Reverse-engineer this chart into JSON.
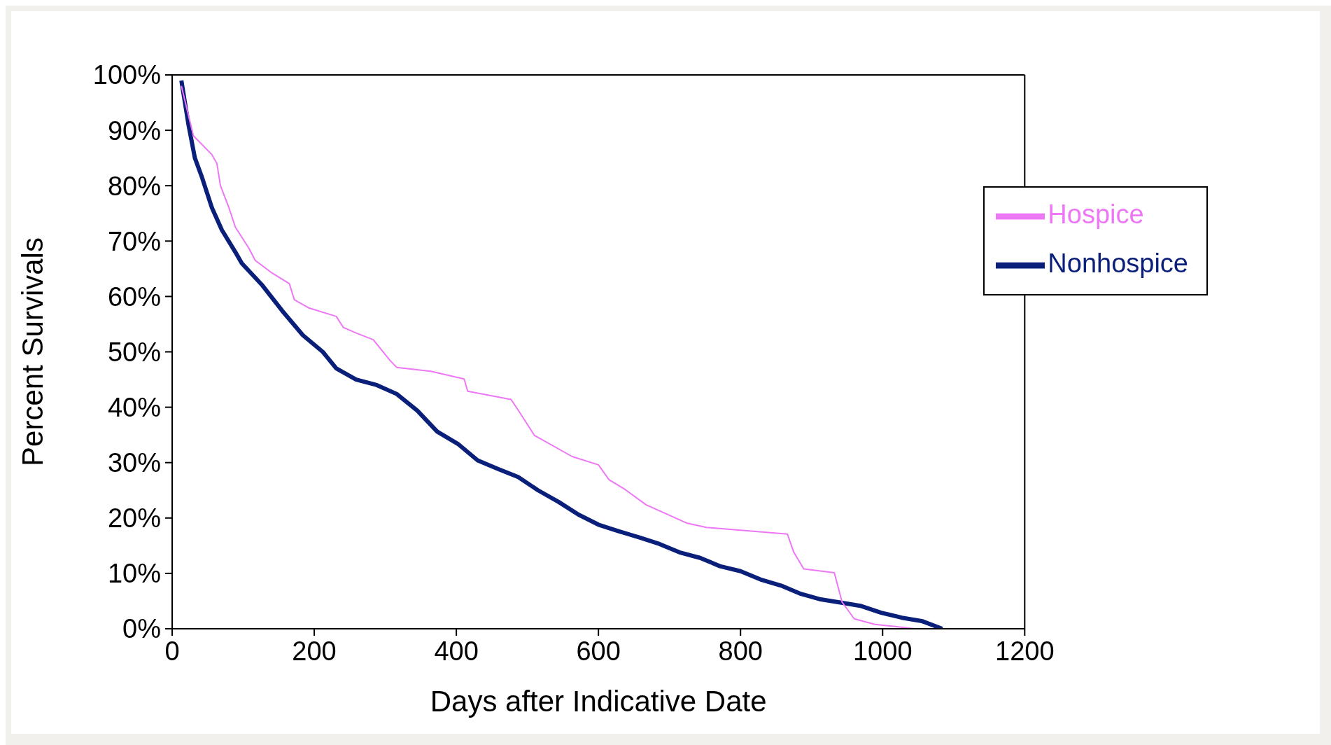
{
  "chart_data": {
    "type": "line",
    "xlabel": "Days after Indicative Date",
    "ylabel": "Percent Survivals",
    "xlim": [
      0,
      1200
    ],
    "xticks": [
      0,
      200,
      400,
      600,
      800,
      1000,
      1200
    ],
    "ylim": [
      0,
      100
    ],
    "yticks": [
      {
        "value": 0,
        "label": "0%"
      },
      {
        "value": 10,
        "label": "10%"
      },
      {
        "value": 20,
        "label": "20%"
      },
      {
        "value": 30,
        "label": "30%"
      },
      {
        "value": 40,
        "label": "40%"
      },
      {
        "value": 50,
        "label": "50%"
      },
      {
        "value": 60,
        "label": "60%"
      },
      {
        "value": 70,
        "label": "70%"
      },
      {
        "value": 80,
        "label": "80%"
      },
      {
        "value": 90,
        "label": "90%"
      },
      {
        "value": 100,
        "label": "100%"
      }
    ],
    "grid": false,
    "legend": "top right",
    "marker": "none",
    "line_style": "solid",
    "series": [
      {
        "name": "Nonhospice",
        "color": "#0a1f7a",
        "x": [
          13,
          23,
          32,
          42,
          56,
          70,
          89,
          98,
          127,
          155,
          184,
          212,
          231,
          259,
          288,
          316,
          345,
          373,
          402,
          430,
          458,
          487,
          515,
          544,
          572,
          600,
          629,
          657,
          686,
          714,
          743,
          771,
          800,
          828,
          857,
          885,
          913,
          942,
          970,
          998,
          1027,
          1055,
          1084
        ],
        "values": [
          99,
          91,
          85,
          81.5,
          76,
          72,
          68,
          66,
          62,
          57.4,
          53,
          50,
          47,
          45,
          44,
          42.4,
          39.4,
          35.6,
          33.4,
          30.4,
          28.9,
          27.4,
          25,
          22.9,
          20.6,
          18.8,
          17.6,
          16.5,
          15.3,
          13.8,
          12.8,
          11.3,
          10.4,
          8.9,
          7.8,
          6.3,
          5.3,
          4.7,
          4.1,
          2.9,
          2,
          1.4,
          0
        ]
      },
      {
        "name": "Hospice",
        "color": "#ee77f5",
        "x": [
          13,
          30,
          56,
          63,
          68,
          80,
          89,
          108,
          117,
          141,
          165,
          172,
          193,
          231,
          241,
          259,
          283,
          307,
          316,
          364,
          411,
          416,
          477,
          489,
          510,
          563,
          600,
          615,
          638,
          667,
          724,
          752,
          818,
          866,
          875,
          889,
          932,
          943,
          960,
          989,
          1046
        ],
        "values": [
          98,
          89,
          85.6,
          84,
          80,
          76,
          72.5,
          68.7,
          66.5,
          64.2,
          62.3,
          59.4,
          57.9,
          56.4,
          54.4,
          53.4,
          52.2,
          48.4,
          47.2,
          46.5,
          45.1,
          42.9,
          41.4,
          39.1,
          34.9,
          31.1,
          29.6,
          26.9,
          25.1,
          22.4,
          19.1,
          18.3,
          17.6,
          17.1,
          13.8,
          10.8,
          10.1,
          4.8,
          1.8,
          0.8,
          0
        ]
      }
    ]
  }
}
